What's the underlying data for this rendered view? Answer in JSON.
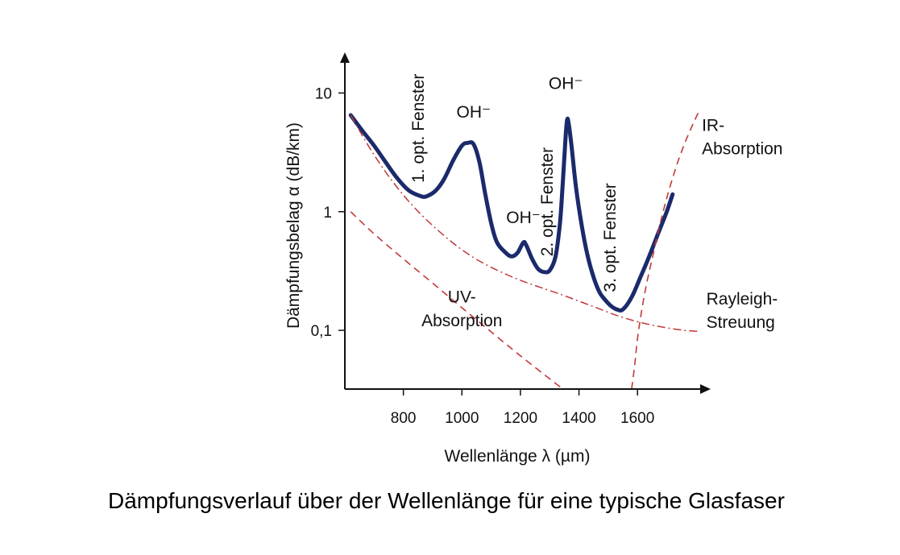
{
  "caption": "Dämpfungsverlauf über der Wellenlänge für eine typische Glasfaser",
  "chart_data": {
    "type": "line",
    "xlabel": "Wellenlänge λ (µm)",
    "ylabel": "Dämpfungsbelag α (dB/km)",
    "x_ticks": [
      800,
      1000,
      1200,
      1400,
      1600
    ],
    "y_ticks": [
      {
        "value": 0.1,
        "label": "0,1"
      },
      {
        "value": 1,
        "label": "1"
      },
      {
        "value": 10,
        "label": "10"
      }
    ],
    "y_scale": "log",
    "xlim": [
      600,
      1850
    ],
    "ylim": [
      0.032,
      22
    ],
    "colors": {
      "main": "#1b2a6b",
      "dashed": "#c03a3a",
      "axis": "#111111"
    },
    "series": [
      {
        "id": "total",
        "style": "solid",
        "x": [
          620,
          660,
          700,
          740,
          780,
          820,
          860,
          880,
          910,
          940,
          970,
          1000,
          1020,
          1040,
          1060,
          1080,
          1100,
          1120,
          1150,
          1170,
          1190,
          1210,
          1220,
          1240,
          1260,
          1280,
          1300,
          1320,
          1335,
          1345,
          1355,
          1360,
          1365,
          1375,
          1390,
          1410,
          1430,
          1450,
          1470,
          1490,
          1510,
          1530,
          1550,
          1580,
          1610,
          1640,
          1670,
          1700,
          1720
        ],
        "y": [
          6.5,
          4.8,
          3.6,
          2.6,
          1.9,
          1.5,
          1.35,
          1.35,
          1.5,
          1.9,
          2.7,
          3.6,
          3.8,
          3.7,
          2.6,
          1.4,
          0.8,
          0.55,
          0.45,
          0.42,
          0.45,
          0.55,
          0.52,
          0.4,
          0.33,
          0.31,
          0.32,
          0.42,
          0.8,
          1.8,
          4.5,
          6.0,
          5.5,
          3.5,
          1.6,
          0.75,
          0.42,
          0.28,
          0.21,
          0.18,
          0.16,
          0.15,
          0.15,
          0.19,
          0.28,
          0.42,
          0.65,
          1.0,
          1.4
        ]
      },
      {
        "id": "rayleigh",
        "style": "dash-dot",
        "x": [
          620,
          680,
          740,
          800,
          860,
          920,
          980,
          1040,
          1100,
          1160,
          1220,
          1280,
          1340,
          1400,
          1460,
          1520,
          1580,
          1640,
          1700,
          1760,
          1810
        ],
        "y": [
          6.5,
          3.6,
          2.15,
          1.38,
          0.95,
          0.69,
          0.52,
          0.41,
          0.34,
          0.29,
          0.253,
          0.225,
          0.2,
          0.176,
          0.155,
          0.136,
          0.122,
          0.112,
          0.105,
          0.1,
          0.098
        ]
      },
      {
        "id": "uv",
        "style": "dashed",
        "x": [
          620,
          700,
          800,
          900,
          1000,
          1100,
          1200,
          1300,
          1345
        ],
        "y": [
          1.0,
          0.65,
          0.4,
          0.25,
          0.155,
          0.097,
          0.061,
          0.039,
          0.032
        ]
      },
      {
        "id": "ir",
        "style": "dashed",
        "x": [
          1580,
          1590,
          1600,
          1615,
          1630,
          1650,
          1675,
          1700,
          1730,
          1760,
          1790,
          1810
        ],
        "y": [
          0.032,
          0.05,
          0.085,
          0.15,
          0.24,
          0.4,
          0.75,
          1.3,
          2.3,
          3.7,
          5.5,
          7.0
        ]
      }
    ],
    "annotations": [
      {
        "id": "window1",
        "text": "1. opt. Fenster",
        "x": 870,
        "y": 1.75,
        "rotate": -90
      },
      {
        "id": "oh1",
        "text": "OH⁻",
        "x": 1040,
        "y": 6.2,
        "rotate": 0
      },
      {
        "id": "oh2",
        "text": "OH⁻",
        "x": 1210,
        "y": 0.8,
        "rotate": 0
      },
      {
        "id": "window2",
        "text": "2. opt. Fenster",
        "x": 1310,
        "y": 0.42,
        "rotate": -90
      },
      {
        "id": "oh3",
        "text": "OH⁻",
        "x": 1355,
        "y": 10.8,
        "rotate": 0
      },
      {
        "id": "window3",
        "text": "3. opt. Fenster",
        "x": 1525,
        "y": 0.21,
        "rotate": -90
      },
      {
        "id": "ir_label_1",
        "text": "IR-",
        "x": 1820,
        "y": 4.8,
        "rotate": 0
      },
      {
        "id": "ir_label_2",
        "text": "Absorption",
        "x": 1820,
        "y": 3.05,
        "rotate": 0
      },
      {
        "id": "rayleigh_label_1",
        "text": "Rayleigh-",
        "x": 1835,
        "y": 0.165,
        "rotate": 0
      },
      {
        "id": "rayleigh_label_2",
        "text": "Streuung",
        "x": 1835,
        "y": 0.105,
        "rotate": 0
      },
      {
        "id": "uv_label_1",
        "text": "UV-",
        "x": 1000,
        "y": 0.172,
        "rotate": 0
      },
      {
        "id": "uv_label_2",
        "text": "Absorption",
        "x": 1000,
        "y": 0.108,
        "rotate": 0
      }
    ]
  }
}
